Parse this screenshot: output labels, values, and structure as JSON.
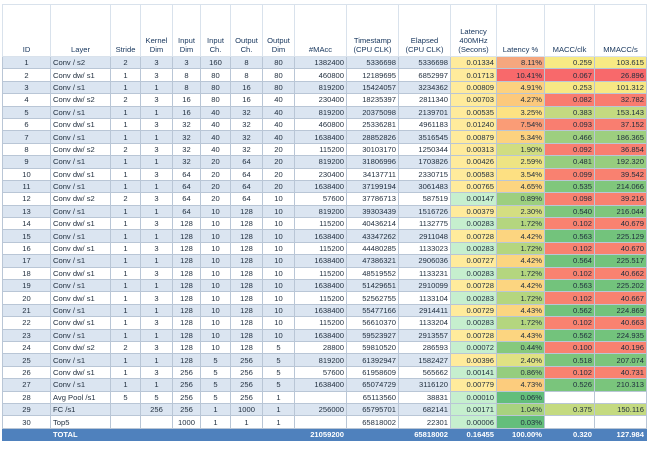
{
  "headers": [
    "ID",
    "Layer",
    "Stride",
    "Kernel Dim",
    "Input Dim",
    "Input Ch.",
    "Output Ch.",
    "Output Dim",
    "#MAcc",
    "Timestamp (CPU CLK)",
    "Elapsed (CPU CLK)",
    "Latency 400MHz (Secons)",
    "Latency %",
    "MACC/clk",
    "MMACC/s"
  ],
  "rows": [
    [
      "1",
      "Conv / s2",
      "2",
      "3",
      "3",
      "160",
      "8",
      "80",
      "1382400",
      "5336698",
      "5336698",
      "0.01334",
      "8.11%",
      "0.259",
      "103.615"
    ],
    [
      "2",
      "Conv dw/ s1",
      "1",
      "3",
      "8",
      "80",
      "8",
      "80",
      "460800",
      "12189695",
      "6852997",
      "0.01713",
      "10.41%",
      "0.067",
      "26.896"
    ],
    [
      "3",
      "Conv / s1",
      "1",
      "1",
      "8",
      "80",
      "16",
      "80",
      "819200",
      "15424057",
      "3234362",
      "0.00809",
      "4.91%",
      "0.253",
      "101.312"
    ],
    [
      "4",
      "Conv dw/ s2",
      "2",
      "3",
      "16",
      "80",
      "16",
      "40",
      "230400",
      "18235397",
      "2811340",
      "0.00703",
      "4.27%",
      "0.082",
      "32.782"
    ],
    [
      "5",
      "Conv / s1",
      "1",
      "1",
      "16",
      "40",
      "32",
      "40",
      "819200",
      "20375098",
      "2139701",
      "0.00535",
      "3.25%",
      "0.383",
      "153.143"
    ],
    [
      "6",
      "Conv dw/ s1",
      "1",
      "3",
      "32",
      "40",
      "32",
      "40",
      "460800",
      "25336281",
      "4961183",
      "0.01240",
      "7.54%",
      "0.093",
      "37.152"
    ],
    [
      "7",
      "Conv / s1",
      "1",
      "1",
      "32",
      "40",
      "32",
      "40",
      "1638400",
      "28852826",
      "3516545",
      "0.00879",
      "5.34%",
      "0.466",
      "186.365"
    ],
    [
      "8",
      "Conv dw/ s2",
      "2",
      "3",
      "32",
      "40",
      "32",
      "20",
      "115200",
      "30103170",
      "1250344",
      "0.00313",
      "1.90%",
      "0.092",
      "36.854"
    ],
    [
      "9",
      "Conv / s1",
      "1",
      "1",
      "32",
      "20",
      "64",
      "20",
      "819200",
      "31806996",
      "1703826",
      "0.00426",
      "2.59%",
      "0.481",
      "192.320"
    ],
    [
      "10",
      "Conv dw/ s1",
      "1",
      "3",
      "64",
      "20",
      "64",
      "20",
      "230400",
      "34137711",
      "2330715",
      "0.00583",
      "3.54%",
      "0.099",
      "39.542"
    ],
    [
      "11",
      "Conv / s1",
      "1",
      "1",
      "64",
      "20",
      "64",
      "20",
      "1638400",
      "37199194",
      "3061483",
      "0.00765",
      "4.65%",
      "0.535",
      "214.066"
    ],
    [
      "12",
      "Conv dw/ s2",
      "2",
      "3",
      "64",
      "20",
      "64",
      "10",
      "57600",
      "37786713",
      "587519",
      "0.00147",
      "0.89%",
      "0.098",
      "39.216"
    ],
    [
      "13",
      "Conv / s1",
      "1",
      "1",
      "64",
      "10",
      "128",
      "10",
      "819200",
      "39303439",
      "1516726",
      "0.00379",
      "2.30%",
      "0.540",
      "216.044"
    ],
    [
      "14",
      "Conv dw/ s1",
      "1",
      "3",
      "128",
      "10",
      "128",
      "10",
      "115200",
      "40436214",
      "1132775",
      "0.00283",
      "1.72%",
      "0.102",
      "40.679"
    ],
    [
      "15",
      "Conv / s1",
      "1",
      "1",
      "128",
      "10",
      "128",
      "10",
      "1638400",
      "43347262",
      "2911048",
      "0.00728",
      "4.42%",
      "0.563",
      "225.129"
    ],
    [
      "16",
      "Conv dw/ s1",
      "1",
      "3",
      "128",
      "10",
      "128",
      "10",
      "115200",
      "44480285",
      "1133023",
      "0.00283",
      "1.72%",
      "0.102",
      "40.670"
    ],
    [
      "17",
      "Conv / s1",
      "1",
      "1",
      "128",
      "10",
      "128",
      "10",
      "1638400",
      "47386321",
      "2906036",
      "0.00727",
      "4.42%",
      "0.564",
      "225.517"
    ],
    [
      "18",
      "Conv dw/ s1",
      "1",
      "3",
      "128",
      "10",
      "128",
      "10",
      "115200",
      "48519552",
      "1133231",
      "0.00283",
      "1.72%",
      "0.102",
      "40.662"
    ],
    [
      "19",
      "Conv / s1",
      "1",
      "1",
      "128",
      "10",
      "128",
      "10",
      "1638400",
      "51429651",
      "2910099",
      "0.00728",
      "4.42%",
      "0.563",
      "225.202"
    ],
    [
      "20",
      "Conv dw/ s1",
      "1",
      "3",
      "128",
      "10",
      "128",
      "10",
      "115200",
      "52562755",
      "1133104",
      "0.00283",
      "1.72%",
      "0.102",
      "40.667"
    ],
    [
      "21",
      "Conv / s1",
      "1",
      "1",
      "128",
      "10",
      "128",
      "10",
      "1638400",
      "55477166",
      "2914411",
      "0.00729",
      "4.43%",
      "0.562",
      "224.869"
    ],
    [
      "22",
      "Conv dw/ s1",
      "1",
      "3",
      "128",
      "10",
      "128",
      "10",
      "115200",
      "56610370",
      "1133204",
      "0.00283",
      "1.72%",
      "0.102",
      "40.663"
    ],
    [
      "23",
      "Conv / s1",
      "1",
      "1",
      "128",
      "10",
      "128",
      "10",
      "1638400",
      "59523927",
      "2913557",
      "0.00728",
      "4.43%",
      "0.562",
      "224.935"
    ],
    [
      "24",
      "Conv dw/ s2",
      "2",
      "3",
      "128",
      "10",
      "128",
      "5",
      "28800",
      "59810520",
      "286593",
      "0.00072",
      "0.44%",
      "0.100",
      "40.196"
    ],
    [
      "25",
      "Conv / s1",
      "1",
      "1",
      "128",
      "5",
      "256",
      "5",
      "819200",
      "61392947",
      "1582427",
      "0.00396",
      "2.40%",
      "0.518",
      "207.074"
    ],
    [
      "26",
      "Conv dw/ s1",
      "1",
      "3",
      "256",
      "5",
      "256",
      "5",
      "57600",
      "61958609",
      "565662",
      "0.00141",
      "0.86%",
      "0.102",
      "40.731"
    ],
    [
      "27",
      "Conv / s1",
      "1",
      "1",
      "256",
      "5",
      "256",
      "5",
      "1638400",
      "65074729",
      "3116120",
      "0.00779",
      "4.73%",
      "0.526",
      "210.313"
    ],
    [
      "28",
      "Avg Pool /s1",
      "5",
      "5",
      "256",
      "5",
      "256",
      "1",
      "",
      "65113560",
      "38831",
      "0.00010",
      "0.06%",
      "",
      ""
    ],
    [
      "29",
      "FC /s1",
      "",
      "256",
      "256",
      "1",
      "1000",
      "1",
      "256000",
      "65795701",
      "682141",
      "0.00171",
      "1.04%",
      "0.375",
      "150.116"
    ],
    [
      "30",
      "Top5",
      "",
      "",
      "1000",
      "1",
      "1",
      "1",
      "",
      "65818002",
      "22301",
      "0.00006",
      "0.03%",
      "",
      ""
    ]
  ],
  "total": [
    "",
    "TOTAL",
    "",
    "",
    "",
    "",
    "",
    "",
    "21059200",
    "",
    "65818002",
    "0.16455",
    "100.00%",
    "0.320",
    "127.984"
  ],
  "colors": {
    "latpct": [
      "#f5a77e",
      "#f8696b",
      "#fcd17f",
      "#fcc97c",
      "#fde283",
      "#fa9c76",
      "#fcd27f",
      "#d0dd81",
      "#eee483",
      "#fde082",
      "#fcd580",
      "#9ccf7f",
      "#d4de81",
      "#b4d67f",
      "#fcd580",
      "#b4d67f",
      "#fcd580",
      "#b4d67f",
      "#fcd580",
      "#b4d67f",
      "#fcd580",
      "#b4d67f",
      "#fcd580",
      "#86c97d",
      "#e0e183",
      "#95cd7e",
      "#fccc7d",
      "#63be7b",
      "#a8d27f",
      "#64be7b"
    ],
    "macc": [
      "#f8ea84",
      "#f8696b",
      "#f7e884",
      "#f97c6f",
      "#c4da80",
      "#f97e70",
      "#9dcf7f",
      "#f97e70",
      "#97cd7e",
      "#f98170",
      "#80c77c",
      "#f98170",
      "#7ec67c",
      "#f98270",
      "#73c37c",
      "#f98270",
      "#73c37c",
      "#f98270",
      "#73c37c",
      "#f98270",
      "#73c37c",
      "#f98270",
      "#73c37c",
      "#f98170",
      "#7cc57c",
      "#f98270",
      "#7ac57c",
      "",
      "#c4da80",
      ""
    ],
    "mmacc": [
      "#f8ea84",
      "#f8696b",
      "#f7e884",
      "#f97c6f",
      "#c4da80",
      "#f97e70",
      "#9dcf7f",
      "#f97e70",
      "#97cd7e",
      "#f98170",
      "#80c77c",
      "#f98170",
      "#7ec67c",
      "#f98270",
      "#73c37c",
      "#f98270",
      "#73c37c",
      "#f98270",
      "#73c37c",
      "#f98270",
      "#73c37c",
      "#f98270",
      "#73c37c",
      "#f98170",
      "#7cc57c",
      "#f98270",
      "#7ac57c",
      "",
      "#c4da80",
      ""
    ],
    "latency_sec": [
      "#ffeb9c",
      "#ffeb9c",
      "#ffeb9c",
      "#ffeb9c",
      "#ffeb9c",
      "#ffeb9c",
      "#ffeb9c",
      "#ffeb9c",
      "#ffeb9c",
      "#ffeb9c",
      "#ffeb9c",
      "#c6efce",
      "#ffeb9c",
      "#c6efce",
      "#ffeb9c",
      "#c6efce",
      "#ffeb9c",
      "#c6efce",
      "#ffeb9c",
      "#c6efce",
      "#ffeb9c",
      "#c6efce",
      "#ffeb9c",
      "#c6efce",
      "#ffeb9c",
      "#c6efce",
      "#ffeb9c",
      "#c6efce",
      "#c6efce",
      "#c6efce"
    ]
  }
}
